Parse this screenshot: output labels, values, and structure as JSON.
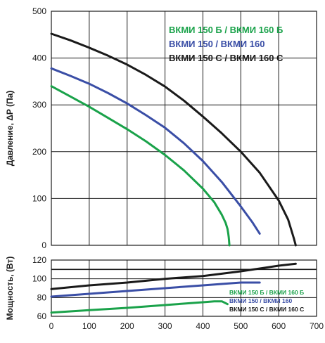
{
  "chart_data": [
    {
      "type": "line",
      "ylabel": "Давление, ΔP (Па)",
      "xlim": [
        0,
        700
      ],
      "ylim": [
        0,
        500
      ],
      "xticks": [
        0,
        100,
        200,
        300,
        400,
        500,
        600,
        700
      ],
      "yticks": [
        0,
        100,
        200,
        300,
        400,
        500
      ],
      "grid": true,
      "legend_placement": "top-right",
      "series": [
        {
          "name": "ВКМИ 150 Б / ВКМИ 160 Б",
          "color": "#1aa24a",
          "x": [
            0,
            50,
            100,
            150,
            200,
            250,
            300,
            350,
            400,
            430,
            450,
            460,
            465,
            467,
            468,
            469,
            470
          ],
          "y": [
            340,
            318,
            296,
            272,
            248,
            222,
            193,
            160,
            121,
            92,
            65,
            48,
            35,
            25,
            18,
            10,
            0
          ]
        },
        {
          "name": "ВКМИ 150 / ВКМИ 160",
          "color": "#3a4ea6",
          "x": [
            0,
            50,
            100,
            150,
            200,
            250,
            300,
            350,
            400,
            450,
            500,
            530,
            550
          ],
          "y": [
            378,
            362,
            345,
            325,
            303,
            278,
            251,
            218,
            180,
            135,
            83,
            50,
            25
          ]
        },
        {
          "name": "ВКМИ 150 С / ВКМИ 160 С",
          "color": "#1a1a1a",
          "x": [
            0,
            50,
            100,
            150,
            200,
            250,
            300,
            350,
            400,
            450,
            500,
            550,
            600,
            625,
            640,
            645
          ],
          "y": [
            452,
            438,
            422,
            405,
            386,
            364,
            339,
            309,
            275,
            239,
            200,
            155,
            96,
            55,
            15,
            0
          ]
        }
      ]
    },
    {
      "type": "line",
      "ylabel": "Мощность, (Вт)",
      "xlim": [
        0,
        700
      ],
      "ylim": [
        60,
        120
      ],
      "xticks": [
        0,
        100,
        200,
        300,
        400,
        500,
        600,
        700
      ],
      "yticks": [
        60,
        80,
        100,
        120
      ],
      "grid": true,
      "legend_placement": "right",
      "reference_line_y": 110,
      "series": [
        {
          "name": "ВКМИ 150 Б / ВКМИ 160 Б",
          "color": "#1aa24a",
          "x": [
            0,
            100,
            200,
            300,
            400,
            430,
            450,
            465
          ],
          "y": [
            64,
            66.5,
            69,
            72,
            75,
            76,
            76,
            73
          ]
        },
        {
          "name": "ВКМИ 150 / ВКМИ 160",
          "color": "#3a4ea6",
          "x": [
            0,
            100,
            200,
            300,
            400,
            500,
            550
          ],
          "y": [
            81,
            84,
            87,
            90,
            93,
            96,
            96
          ]
        },
        {
          "name": "ВКМИ 150 С / ВКМИ 160 С",
          "color": "#1a1a1a",
          "x": [
            0,
            100,
            200,
            300,
            400,
            500,
            600,
            645
          ],
          "y": [
            89,
            93,
            96,
            100,
            103,
            108,
            114,
            116
          ]
        }
      ]
    }
  ]
}
